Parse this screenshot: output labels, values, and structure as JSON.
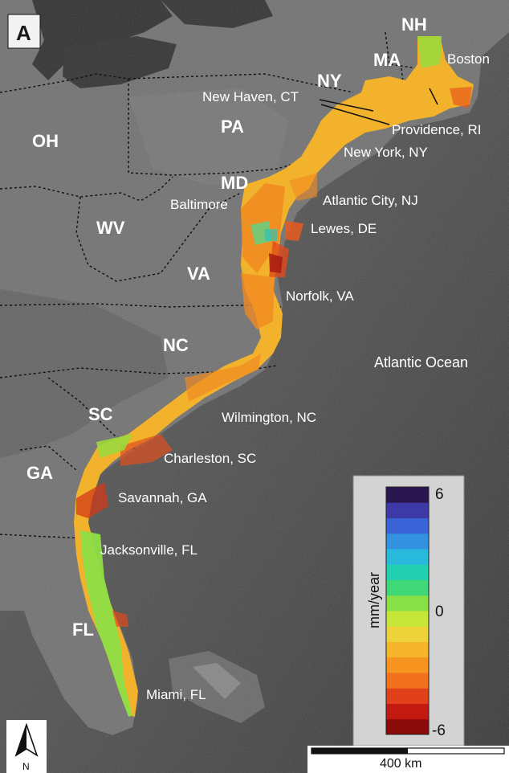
{
  "panel_label": "A",
  "ocean_label": "Atlantic Ocean",
  "states": [
    "NH",
    "MA",
    "NY",
    "PA",
    "OH",
    "MD",
    "WV",
    "VA",
    "NC",
    "SC",
    "GA",
    "FL"
  ],
  "cities": [
    "Boston",
    "New Haven, CT",
    "Providence, RI",
    "New York, NY",
    "Baltimore",
    "Atlantic City, NJ",
    "Lewes, DE",
    "Norfolk, VA",
    "Wilmington, NC",
    "Charleston, SC",
    "Savannah, GA",
    "Jacksonville, FL",
    "Miami, FL"
  ],
  "legend": {
    "title": "mm/year",
    "max_label": "6",
    "mid_label": "0",
    "min_label": "-6",
    "range": [
      -6,
      6
    ],
    "colors": [
      "#8b0a0a",
      "#c21a10",
      "#e0401a",
      "#f2711e",
      "#f7931f",
      "#f6b52c",
      "#eed23a",
      "#c6e63a",
      "#86e046",
      "#3fd777",
      "#22d0b0",
      "#28b9dc",
      "#3392e0",
      "#3a63d8",
      "#3d3aa8",
      "#2a1750"
    ]
  },
  "scale_bar": {
    "label": "400 km"
  },
  "north_arrow": {
    "label": "N",
    "icon": "north-arrow-icon"
  }
}
